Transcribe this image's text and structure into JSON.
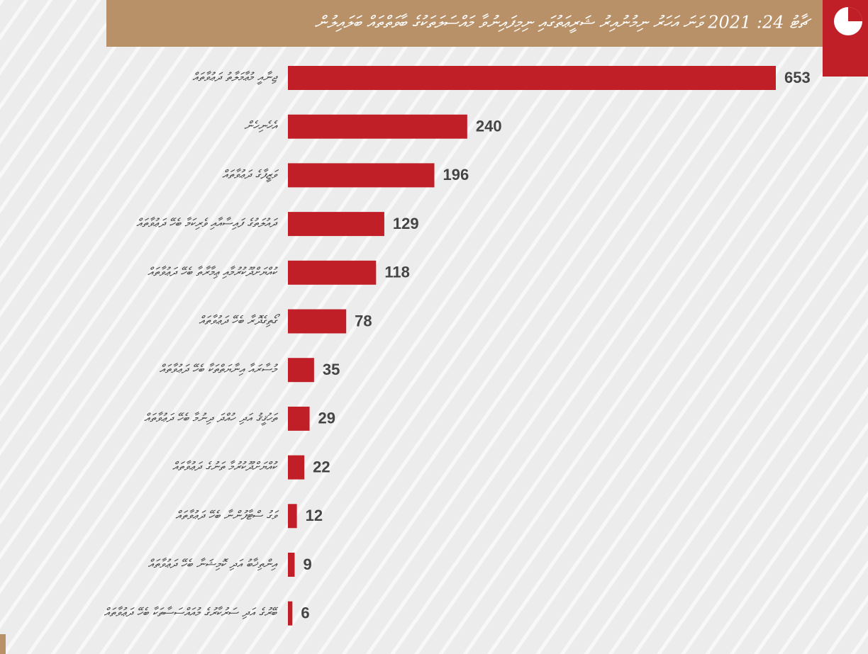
{
  "chart_data": {
    "type": "bar",
    "orientation": "horizontal",
    "title": "ޗާޓު 24: 2021 ވަނަ އަހަރު ނިމުނުއިރު ޝަރީޢަތުގައި ނިމިފައިނުވާ މައްސަލަތަކުގެ ބާވަތްތައް ބަލައިލުން",
    "categories": [
      "ޖިނާއީ މުޢާމަލާތު ދަޢުވާތައް",
      "އެހެނިހެން",
      "ވަޒީފާގެ ދަޢުވާތައް",
      "ދައުލަތުގެ ފައިސާއާއި ވެރިކަމާ ބެހޭ ދަޢުވާތައް",
      "ކުއްޔަށްދޫކުރުމާއި ޢިމާރާތާ ބެހޭ ދަޢުވާތައް",
      "ގޯތިގެދޮރާ ބެހޭ ދަޢުވާތައް",
      "މުސާރައާ އިނާޔަތްތަކާ ބެހޭ ދަޢުވާތައް",
      "ތަހުޤީޤު އަދި ހުއްދަ ދިނުމާ ބެހޭ ދަޢުވާތައް",
      "ކުއްޔަށްދޫކުރުމާ ތަނުގެ ދަޢުވާތައް",
      "ވަގު ސްޓާފުންނާ ބެހޭ ދަޢުވާތައް",
      "އިންތިޚާބު އަދި ކޮމިޝަނާ ބެހޭ ދަޢުވާތައް",
      "ބޭރުގެ އަދި ސަރުކާރުގެ މުއައްސަސާތަކާ ބެހޭ ދަޢުވާތައް"
    ],
    "values": [
      653,
      240,
      196,
      129,
      118,
      78,
      35,
      29,
      22,
      12,
      9,
      6
    ],
    "color": "#c11f28"
  }
}
